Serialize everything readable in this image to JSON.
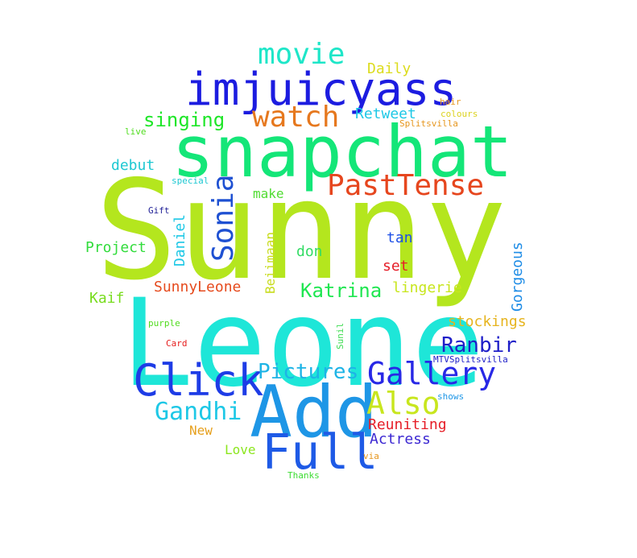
{
  "word_cloud": {
    "words": [
      {
        "text": "Sunny",
        "color": "#b4e61e"
      },
      {
        "text": "Leone",
        "color": "#1ee6d8"
      },
      {
        "text": "snapchat",
        "color": "#14e678"
      },
      {
        "text": "imjuicyass",
        "color": "#1c1ce0"
      },
      {
        "text": "Add",
        "color": "#1e96e6"
      },
      {
        "text": "Full",
        "color": "#1e5ae6"
      },
      {
        "text": "Click",
        "color": "#1e3ce6"
      },
      {
        "text": "Gallery",
        "color": "#2828e6"
      },
      {
        "text": "PastTense",
        "color": "#e6461e"
      },
      {
        "text": "movie",
        "color": "#1ee6c8"
      },
      {
        "text": "watch",
        "color": "#e6781e"
      },
      {
        "text": "Sonia",
        "color": "#1e50d2"
      },
      {
        "text": "Also",
        "color": "#c8e61e"
      },
      {
        "text": "Gandhi",
        "color": "#1ec8e6"
      },
      {
        "text": "Pictures",
        "color": "#1eb4e6"
      },
      {
        "text": "Ranbir",
        "color": "#1e1ec8"
      },
      {
        "text": "Katrina",
        "color": "#1ee650"
      },
      {
        "text": "singing",
        "color": "#1ee628"
      },
      {
        "text": "Retweet",
        "color": "#1ec8e6"
      },
      {
        "text": "Daily",
        "color": "#dcdc1e"
      },
      {
        "text": "debut",
        "color": "#1ec8d2"
      },
      {
        "text": "make",
        "color": "#50dc32"
      },
      {
        "text": "Project",
        "color": "#32dc3c"
      },
      {
        "text": "Daniel",
        "color": "#1ec8e6"
      },
      {
        "text": "Beiimaan",
        "color": "#c8dc1e"
      },
      {
        "text": "don",
        "color": "#32dc64"
      },
      {
        "text": "tan",
        "color": "#1e50e6"
      },
      {
        "text": "set",
        "color": "#e61e28"
      },
      {
        "text": "lingerie",
        "color": "#c8e61e"
      },
      {
        "text": "Gorgeous",
        "color": "#1e8ce6"
      },
      {
        "text": "stockings",
        "color": "#e6b41e"
      },
      {
        "text": "SunnyLeone",
        "color": "#e64b1e"
      },
      {
        "text": "Kaif",
        "color": "#78dc1e"
      },
      {
        "text": "Reuniting",
        "color": "#e61e28"
      },
      {
        "text": "Actress",
        "color": "#3c28d2"
      },
      {
        "text": "New",
        "color": "#e6a01e"
      },
      {
        "text": "Love",
        "color": "#8ce61e"
      },
      {
        "text": "hair",
        "color": "#e6961e"
      },
      {
        "text": "colours",
        "color": "#dcd21e"
      },
      {
        "text": "Splitsvilla",
        "color": "#e6961e"
      },
      {
        "text": "live",
        "color": "#50dc1e"
      },
      {
        "text": "special",
        "color": "#1ec8d2"
      },
      {
        "text": "Gift",
        "color": "#1e1e96"
      },
      {
        "text": "purple",
        "color": "#50dc1e"
      },
      {
        "text": "Card",
        "color": "#e61e1e"
      },
      {
        "text": "Sunil",
        "color": "#3cdc50"
      },
      {
        "text": "MTVSplitsvilla",
        "color": "#1e1ec8"
      },
      {
        "text": "shows",
        "color": "#1e96e6"
      },
      {
        "text": "via",
        "color": "#e6961e"
      },
      {
        "text": "Thanks",
        "color": "#3cdc32"
      }
    ]
  }
}
